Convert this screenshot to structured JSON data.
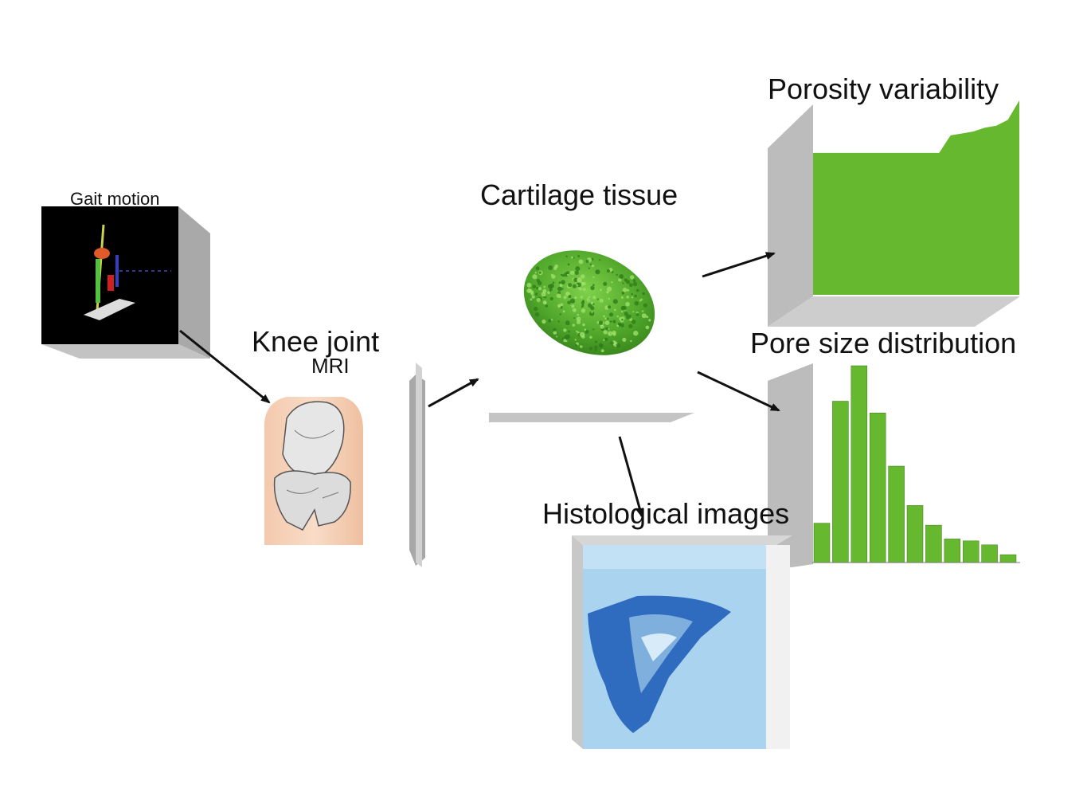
{
  "labels": {
    "gait_motion": "Gait motion",
    "knee_joint": "Knee joint",
    "mri": "MRI",
    "cartilage_tissue": "Cartilage tissue",
    "porosity_variability": "Porosity variability",
    "pore_size_distribution": "Pore size distribution",
    "histological_images": "Histological images"
  },
  "colors": {
    "chart_green": "#66b82e",
    "panel_gray": "#b9b9b9",
    "arrow": "#111111",
    "histology_blue": "#8fc6e8"
  },
  "porosity_profile": [
    0.73,
    0.73,
    0.73,
    0.73,
    0.73,
    0.73,
    0.73,
    0.73,
    0.73,
    0.73,
    0.73,
    0.73,
    0.82,
    0.83,
    0.84,
    0.86,
    0.87,
    0.9,
    1.0
  ],
  "pore_bars": [
    0.2,
    0.82,
    1.0,
    0.76,
    0.49,
    0.29,
    0.19,
    0.12,
    0.11,
    0.09,
    0.04
  ]
}
